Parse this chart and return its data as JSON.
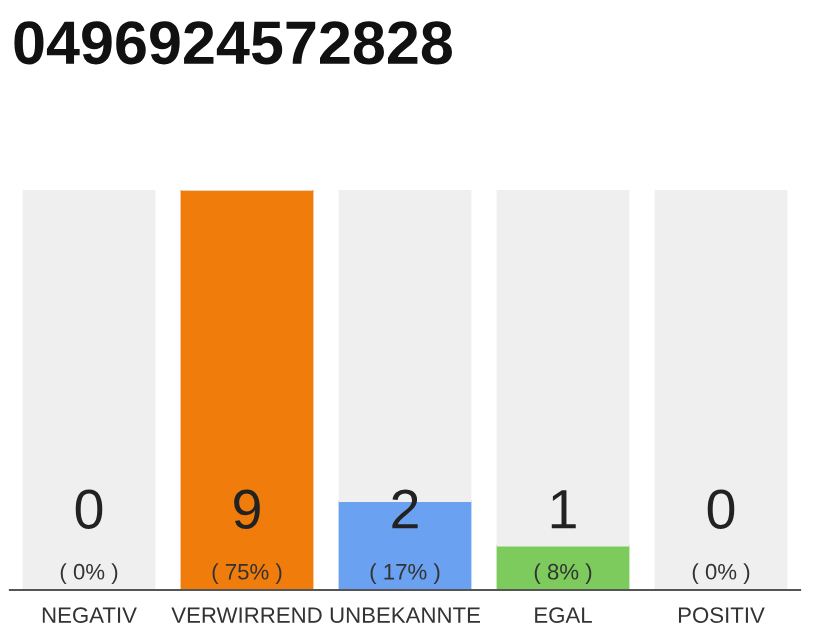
{
  "chart_data": {
    "type": "bar",
    "title": "0496924572828",
    "categories": [
      "NEGATIV",
      "VERWIRREND",
      "UNBEKANNTE",
      "EGAL",
      "POSITIV"
    ],
    "stacked": true,
    "ylim": [
      0,
      9
    ],
    "tick_labels": "x",
    "grid": false,
    "legend": false,
    "series": [
      {
        "color": "#f07c0c",
        "colors": [
          "#f07c0c",
          "#f07c0c",
          "#6aa1f0",
          "#7dcb5c",
          "#f07c0c"
        ],
        "values": [
          0,
          9,
          2,
          1,
          0
        ],
        "value_labels": [
          "0\n( 0% )",
          "9\n( 75% )",
          "2\n( 17% )",
          "1\n( 8% )",
          "0\n( 0% )"
        ]
      },
      {
        "color": "#efefef",
        "values": [
          9,
          0,
          7,
          8,
          9
        ]
      }
    ]
  }
}
